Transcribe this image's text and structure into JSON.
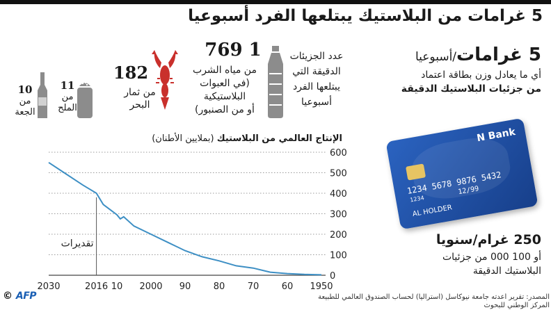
{
  "title": "5 غرامات من البلاستيك يبتلعها الفرد أسبوعيا",
  "headline": {
    "value": "5 غرامات",
    "unit": "/أسبوعيا",
    "line1": "أي ما يعادل وزن بطاقة اعتماد",
    "line2": "من جزئيات البلاستيك الدقيقة"
  },
  "stats": {
    "particles_label": [
      "عدد الجزيئات",
      "الدقيقة التي",
      "يبتلعها الفرد",
      "أسبوعيا"
    ],
    "water": {
      "num": "1 769",
      "label": [
        "من مياه الشرب",
        "(في العبوات",
        "البلاستيكية",
        "أو من الصنبور)"
      ]
    },
    "seafood": {
      "num": "182",
      "label": [
        "من ثمار",
        "البحر"
      ]
    },
    "salt": {
      "num": "11",
      "label": [
        "من",
        "الملح"
      ]
    },
    "beer": {
      "num": "10",
      "label": [
        "من",
        "الجعة"
      ]
    }
  },
  "card": {
    "bank": "N Bank",
    "number": "1234 5678 9876 5432",
    "small": "1234",
    "expiry": "12/99",
    "holder": "AL HOLDER"
  },
  "annual": {
    "value": "250 غرام/سنويا",
    "desc": [
      "أو 100 000 من جزئيات",
      "البلاستيك الدقيقة"
    ]
  },
  "chart_title": {
    "bold": "الإنتاج العالمي من البلاستيك",
    "unit": "(بملايين الأطنان)"
  },
  "chart_annotation": "تقديرات",
  "source": [
    "المصدر: تقرير أعدته جامعة نيوكاسل (أستراليا) لحساب الصندوق العالمي للطبيعة",
    "المركز الوطني للبحوث"
  ],
  "agency": "AFP",
  "colors": {
    "line": "#3d8fc4",
    "card": "#1f4fa3",
    "icon": "#8c8c8c",
    "seafood": "#c9302c"
  },
  "chart_data": {
    "type": "line",
    "title": "الإنتاج العالمي من البلاستيك",
    "ylabel": "(بملايين الأطنان)",
    "xlabel": "",
    "x_ticks": [
      "2030",
      "2016",
      "10",
      "2000",
      "90",
      "80",
      "70",
      "60",
      "1950"
    ],
    "y_ticks": [
      "0",
      "100",
      "200",
      "300",
      "400",
      "500",
      "600"
    ],
    "ylim": [
      0,
      600
    ],
    "xlim": [
      1950,
      2030
    ],
    "x_reversed": true,
    "grid": true,
    "annotation_year": 2016,
    "series": [
      {
        "x": [
          1950,
          1955,
          1960,
          1965,
          1970,
          1975,
          1980,
          1985,
          1990,
          1995,
          2000,
          2005,
          2008,
          2009,
          2010,
          2012,
          2014,
          2016,
          2020,
          2025,
          2030
        ],
        "values": [
          2,
          4,
          8,
          15,
          35,
          46,
          70,
          90,
          120,
          160,
          200,
          240,
          285,
          275,
          295,
          320,
          345,
          400,
          440,
          495,
          550
        ]
      }
    ]
  }
}
